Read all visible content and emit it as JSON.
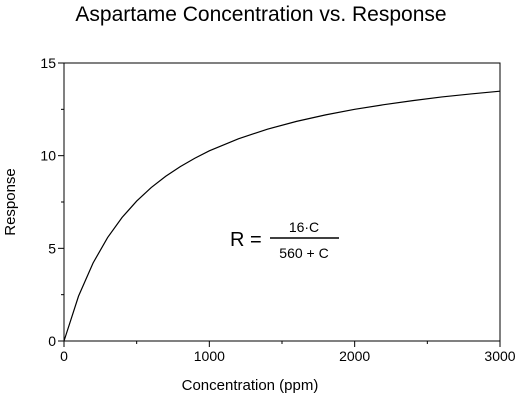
{
  "chart_data": {
    "type": "line",
    "title": "Aspartame Concentration vs. Response",
    "xlabel": "Concentration (ppm)",
    "ylabel": "Response",
    "xlim": [
      0,
      3000
    ],
    "ylim": [
      0,
      15
    ],
    "x_ticks": [
      0,
      1000,
      2000,
      3000
    ],
    "y_ticks": [
      0,
      5,
      10,
      15
    ],
    "grid": false,
    "series": [
      {
        "x": [
          0,
          100,
          200,
          300,
          400,
          500,
          600,
          700,
          800,
          900,
          1000,
          1200,
          1400,
          1600,
          1800,
          2000,
          2200,
          2400,
          2600,
          2800,
          3000
        ],
        "y": [
          0,
          2.42,
          4.21,
          5.58,
          6.67,
          7.55,
          8.28,
          8.89,
          9.41,
          9.86,
          10.26,
          10.91,
          11.43,
          11.85,
          12.2,
          12.5,
          12.75,
          12.97,
          13.17,
          13.33,
          13.48
        ]
      }
    ],
    "annotation": {
      "lhs": "R =",
      "numerator": "16·C",
      "denominator": "560 + C"
    }
  }
}
